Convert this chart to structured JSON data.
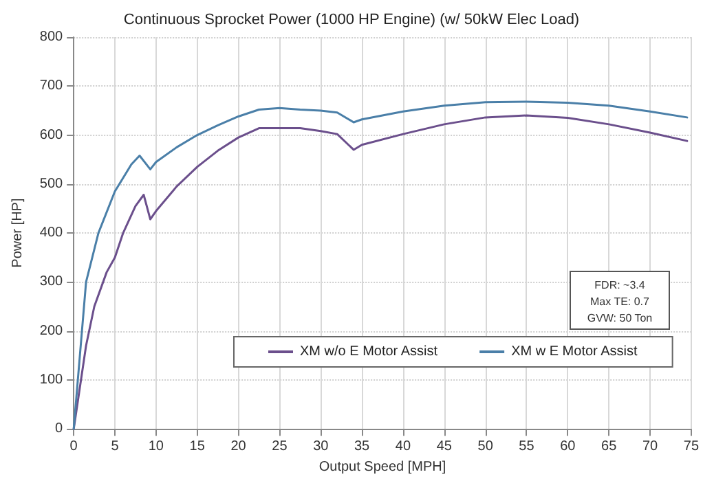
{
  "chart_data": {
    "type": "line",
    "title": "Continuous Sprocket Power (1000 HP Engine) (w/ 50kW Elec Load)",
    "xlabel": "Output Speed [MPH]",
    "ylabel": "Power [HP]",
    "annotations": [
      "FDR: ~3.4",
      "Max TE: 0.7",
      "GVW: 50 Ton"
    ],
    "series": [
      {
        "name": "XM w/o E Motor Assist",
        "color": "#6b4f8c",
        "x": [
          0,
          1.5,
          2.5,
          4,
          5,
          6,
          7.5,
          8.5,
          9.3,
          10,
          12.5,
          15,
          17.5,
          20,
          22.5,
          25,
          27.5,
          30,
          32,
          34,
          35,
          40,
          45,
          50,
          55,
          60,
          65,
          70,
          74.5
        ],
        "values": [
          0,
          170,
          250,
          320,
          350,
          400,
          455,
          478,
          428,
          445,
          495,
          535,
          568,
          595,
          614,
          614,
          614,
          608,
          602,
          570,
          580,
          602,
          622,
          636,
          640,
          635,
          622,
          605,
          588
        ]
      },
      {
        "name": "XM w E Motor Assist",
        "color": "#4a7fa8",
        "x": [
          0,
          1.5,
          3,
          5,
          7,
          8,
          9.3,
          10,
          12.5,
          15,
          17.5,
          20,
          22.5,
          25,
          27.5,
          30,
          32,
          34,
          35,
          40,
          45,
          50,
          55,
          60,
          65,
          70,
          74.5
        ],
        "values": [
          0,
          300,
          400,
          485,
          540,
          558,
          530,
          545,
          575,
          600,
          620,
          638,
          652,
          655,
          652,
          650,
          646,
          626,
          632,
          648,
          660,
          667,
          668,
          666,
          660,
          648,
          636
        ]
      }
    ],
    "xlim": [
      0,
      75
    ],
    "xticks": [
      0,
      5,
      10,
      15,
      20,
      25,
      30,
      35,
      40,
      45,
      50,
      55,
      60,
      65,
      70,
      75
    ],
    "ylim": [
      0,
      800
    ],
    "yticks": [
      0,
      100,
      200,
      300,
      400,
      500,
      600,
      700,
      800
    ],
    "grid": true,
    "legend": "bottom",
    "marker": "none",
    "line_style": "solid"
  }
}
